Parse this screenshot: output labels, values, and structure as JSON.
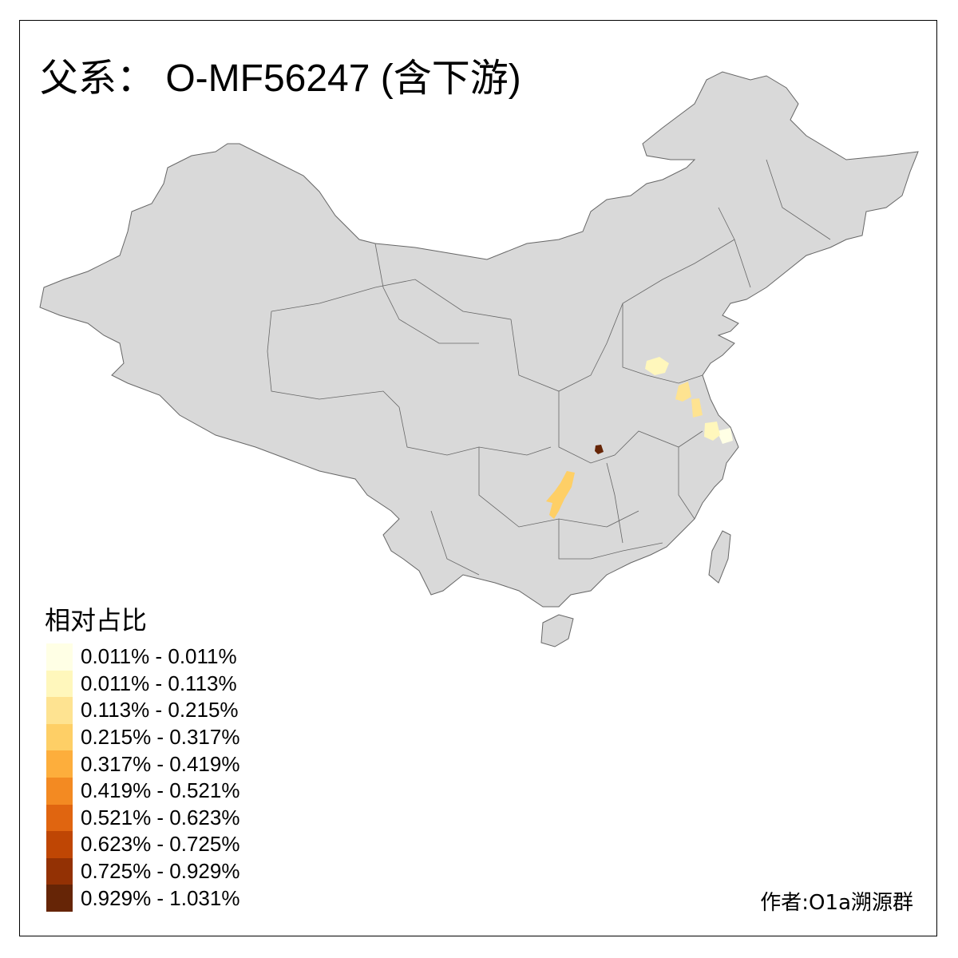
{
  "title": "父系： O-MF56247 (含下游)",
  "legend": {
    "title": "相对占比",
    "items": [
      {
        "label": "0.011% - 0.011%",
        "color": "#FFFFE5"
      },
      {
        "label": "0.011% - 0.113%",
        "color": "#FFF7BC"
      },
      {
        "label": "0.113% - 0.215%",
        "color": "#FEE391"
      },
      {
        "label": "0.215% - 0.317%",
        "color": "#FECF66"
      },
      {
        "label": "0.317% - 0.419%",
        "color": "#FDAE3C"
      },
      {
        "label": "0.419% - 0.521%",
        "color": "#F38A22"
      },
      {
        "label": "0.521% - 0.623%",
        "color": "#E06510"
      },
      {
        "label": "0.623% - 0.725%",
        "color": "#BF4604"
      },
      {
        "label": "0.725% - 0.929%",
        "color": "#933104"
      },
      {
        "label": "0.929% - 1.031%",
        "color": "#662506"
      }
    ]
  },
  "map_colors": {
    "base": "#D9D9D9",
    "border": "#666666"
  },
  "credit": "作者:O1a溯源群"
}
